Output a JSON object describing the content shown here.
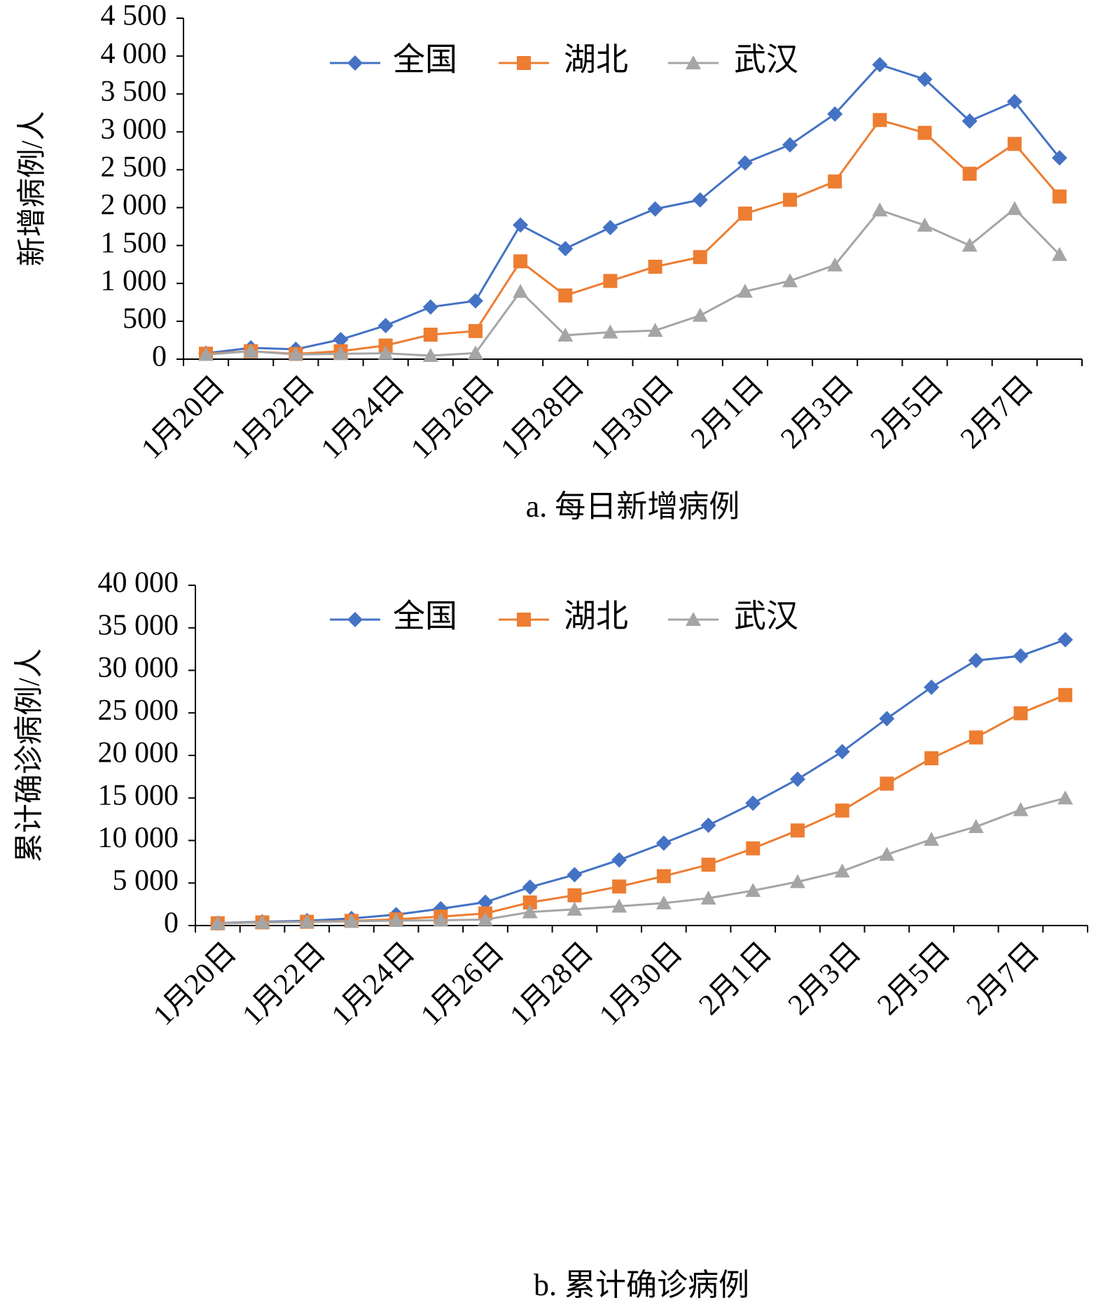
{
  "chart_data": [
    {
      "type": "line",
      "title": "a. 每日新增病例",
      "ylabel": "新增病例/人",
      "categories": [
        "1月20日",
        null,
        "1月22日",
        null,
        "1月24日",
        null,
        "1月26日",
        null,
        "1月28日",
        null,
        "1月30日",
        null,
        "2月1日",
        null,
        "2月3日",
        null,
        "2月5日",
        null,
        "2月7日",
        null
      ],
      "series": [
        {
          "name": "全国",
          "color": "#4472c4",
          "marker": "diamond",
          "values": [
            77,
            149,
            131,
            259,
            444,
            688,
            769,
            1771,
            1459,
            1737,
            1982,
            2102,
            2590,
            2829,
            3235,
            3887,
            3694,
            3143,
            3399,
            2656
          ]
        },
        {
          "name": "湖北",
          "color": "#ed7d31",
          "marker": "square",
          "values": [
            72,
            105,
            69,
            105,
            180,
            323,
            371,
            1291,
            840,
            1032,
            1220,
            1347,
            1921,
            2103,
            2345,
            3156,
            2987,
            2447,
            2841,
            2147
          ]
        },
        {
          "name": "武汉",
          "color": "#a5a5a5",
          "marker": "triangle",
          "values": [
            60,
            105,
            62,
            70,
            77,
            46,
            80,
            892,
            315,
            356,
            378,
            576,
            894,
            1033,
            1242,
            1967,
            1766,
            1501,
            1985,
            1379
          ]
        }
      ],
      "ylim": [
        0,
        4500
      ],
      "yticks": [
        0,
        500,
        {
          "value": 1000,
          "label": "1 000"
        },
        {
          "value": 1500,
          "label": "1 500"
        },
        {
          "value": 2000,
          "label": "2 000"
        },
        {
          "value": 2500,
          "label": "2 500"
        },
        {
          "value": 3000,
          "label": "3 000"
        },
        {
          "value": 3500,
          "label": "3 500"
        },
        {
          "value": 4000,
          "label": "4 000"
        },
        {
          "value": 4500,
          "label": "4 500"
        }
      ]
    },
    {
      "type": "line",
      "title": "b. 累计确诊病例",
      "ylabel": "累计确诊病例/人",
      "categories": [
        "1月20日",
        null,
        "1月22日",
        null,
        "1月24日",
        null,
        "1月26日",
        null,
        "1月28日",
        null,
        "1月30日",
        null,
        "2月1日",
        null,
        "2月3日",
        null,
        "2月5日",
        null,
        "2月7日",
        null
      ],
      "series": [
        {
          "name": "全国",
          "color": "#4472c4",
          "marker": "diamond",
          "values": [
            291,
            440,
            571,
            830,
            1287,
            1975,
            2744,
            4515,
            5974,
            7711,
            9692,
            11791,
            14380,
            17205,
            20438,
            24324,
            28018,
            31161,
            31700,
            33600
          ]
        },
        {
          "name": "湖北",
          "color": "#ed7d31",
          "marker": "square",
          "values": [
            270,
            375,
            444,
            549,
            729,
            1052,
            1423,
            2714,
            3554,
            4586,
            5806,
            7153,
            9074,
            11177,
            13522,
            16678,
            19665,
            22112,
            24953,
            27100
          ]
        },
        {
          "name": "武汉",
          "color": "#a5a5a5",
          "marker": "triangle",
          "values": [
            258,
            363,
            425,
            495,
            572,
            618,
            698,
            1590,
            1905,
            2261,
            2639,
            3215,
            4109,
            5142,
            6384,
            8351,
            10117,
            11618,
            13603,
            14982
          ]
        }
      ],
      "ylim": [
        0,
        40000
      ],
      "yticks": [
        0,
        {
          "value": 5000,
          "label": "5 000"
        },
        {
          "value": 10000,
          "label": "10 000"
        },
        {
          "value": 15000,
          "label": "15 000"
        },
        {
          "value": 20000,
          "label": "20 000"
        },
        {
          "value": 25000,
          "label": "25 000"
        },
        {
          "value": 30000,
          "label": "30 000"
        },
        {
          "value": 35000,
          "label": "35 000"
        },
        {
          "value": 40000,
          "label": "40 000"
        }
      ]
    }
  ]
}
